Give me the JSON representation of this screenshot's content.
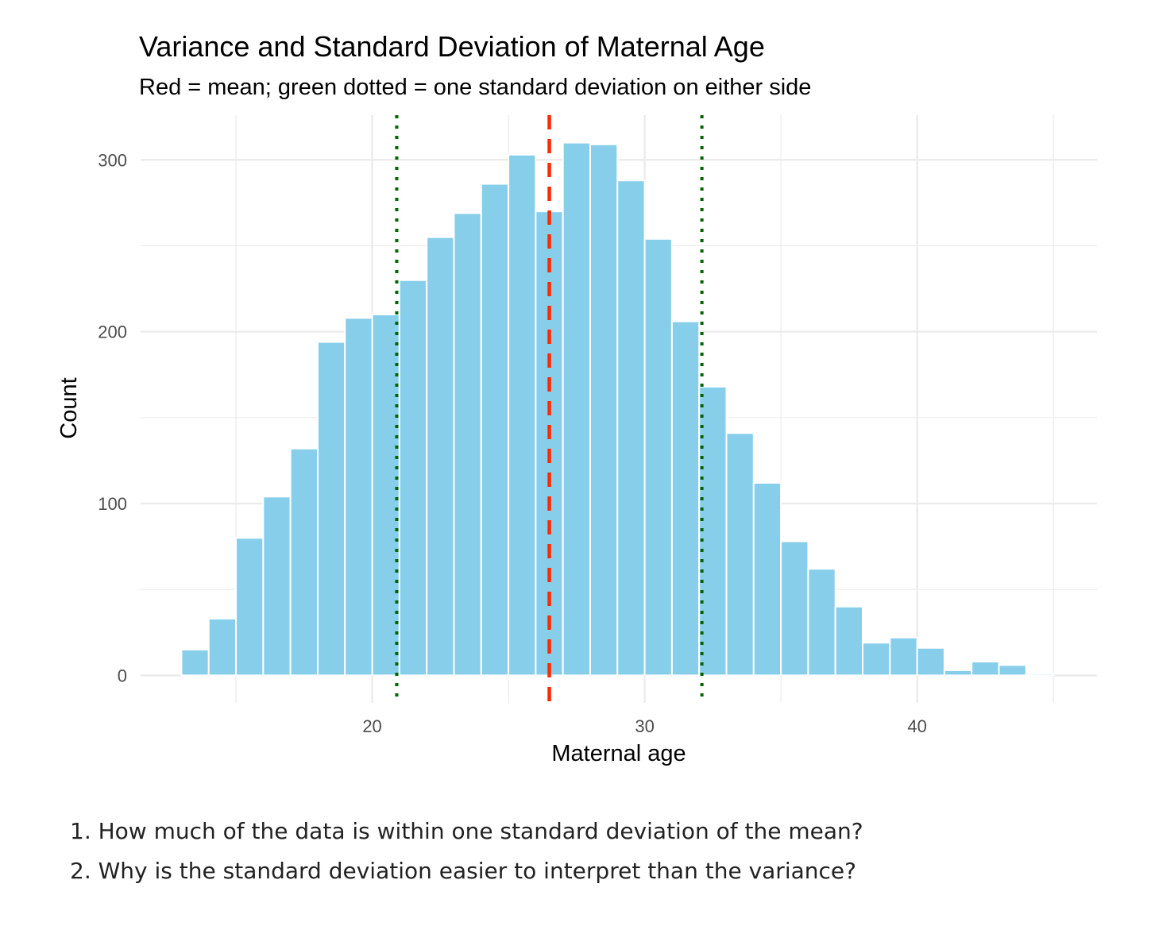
{
  "chart_data": {
    "type": "bar",
    "title": "Variance and Standard Deviation of Maternal Age",
    "subtitle": "Red = mean; green dotted = one standard deviation on either side",
    "xlabel": "Maternal age",
    "ylabel": "Count",
    "xlim": [
      11.5,
      46.6
    ],
    "ylim": [
      -16,
      326
    ],
    "bin_width": 1,
    "bins_start": [
      13,
      14,
      15,
      16,
      17,
      18,
      19,
      20,
      21,
      22,
      23,
      24,
      25,
      26,
      27,
      28,
      29,
      30,
      31,
      32,
      33,
      34,
      35,
      36,
      37,
      38,
      39,
      40,
      41,
      42,
      43,
      44
    ],
    "values": [
      15,
      33,
      80,
      104,
      132,
      194,
      208,
      210,
      230,
      255,
      269,
      286,
      303,
      270,
      310,
      309,
      288,
      254,
      206,
      168,
      141,
      112,
      78,
      62,
      40,
      19,
      22,
      16,
      3,
      8,
      6,
      1
    ],
    "x_ticks": [
      20,
      30,
      40
    ],
    "x_tick_labels": [
      "20",
      "30",
      "40"
    ],
    "y_ticks": [
      0,
      100,
      200,
      300
    ],
    "y_tick_labels": [
      "0",
      "100",
      "200",
      "300"
    ],
    "mean": 26.5,
    "sd_lines": [
      20.9,
      32.1
    ],
    "colors": {
      "bar": "#87CEEB",
      "mean": "#FF2A00",
      "sd": "#006400",
      "grid": "#EBEBEB"
    },
    "grid": true
  },
  "questions": [
    "1. How much of the data is within one standard deviation of the mean?",
    "2. Why is the standard deviation easier to interpret than the variance?"
  ]
}
